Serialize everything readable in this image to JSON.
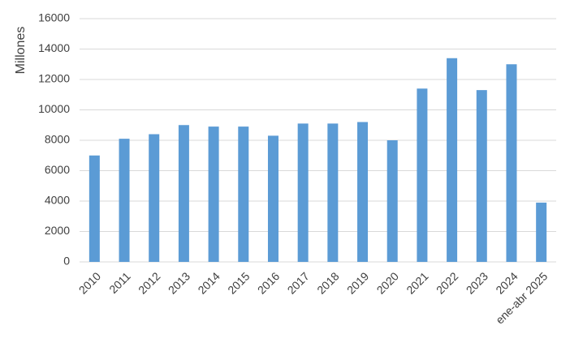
{
  "chart_data": {
    "type": "bar",
    "y_label": "Millones",
    "categories": [
      "2010",
      "2011",
      "2012",
      "2013",
      "2014",
      "2015",
      "2016",
      "2017",
      "2018",
      "2019",
      "2020",
      "2021",
      "2022",
      "2023",
      "2024",
      "ene-abr 2025"
    ],
    "values": [
      7000,
      8100,
      8400,
      9000,
      8900,
      8900,
      8300,
      9100,
      9100,
      9200,
      8000,
      11400,
      13400,
      11300,
      13000,
      3900
    ],
    "color": "#5b9bd5",
    "ylim": [
      0,
      16000
    ],
    "yticks": [
      0,
      2000,
      4000,
      6000,
      8000,
      10000,
      12000,
      14000,
      16000
    ],
    "grid": true
  }
}
